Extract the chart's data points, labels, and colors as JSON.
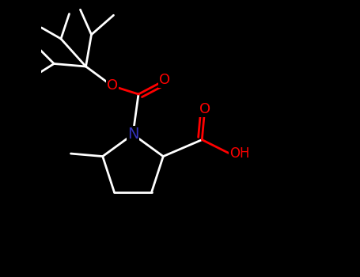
{
  "bg_color": "#000000",
  "bond_color": "#ffffff",
  "N_color": "#3333bb",
  "O_color": "#ff0000",
  "line_width": 2.0,
  "figsize": [
    4.55,
    3.5
  ],
  "dpi": 100,
  "xlim": [
    0.0,
    1.0
  ],
  "ylim": [
    0.0,
    1.0
  ]
}
